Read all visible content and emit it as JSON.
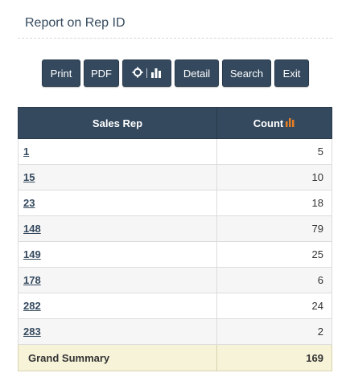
{
  "header": {
    "title": "Report on Rep ID"
  },
  "toolbar": {
    "print_label": "Print",
    "pdf_label": "PDF",
    "detail_label": "Detail",
    "search_label": "Search",
    "exit_label": "Exit",
    "chart_icons": [
      "gear-icon",
      "bar-chart-icon"
    ]
  },
  "table": {
    "columns": [
      "Sales Rep",
      "Count"
    ],
    "rows": [
      {
        "rep": "1",
        "count": "5"
      },
      {
        "rep": "15",
        "count": "10"
      },
      {
        "rep": "23",
        "count": "18"
      },
      {
        "rep": "148",
        "count": "79"
      },
      {
        "rep": "149",
        "count": "25"
      },
      {
        "rep": "178",
        "count": "6"
      },
      {
        "rep": "282",
        "count": "24"
      },
      {
        "rep": "283",
        "count": "2"
      }
    ],
    "total": {
      "label": "Grand Summary",
      "count": "169"
    }
  },
  "colors": {
    "primary": "#34495e",
    "accent": "#e67e22",
    "total_bg": "#f7f3d9"
  }
}
